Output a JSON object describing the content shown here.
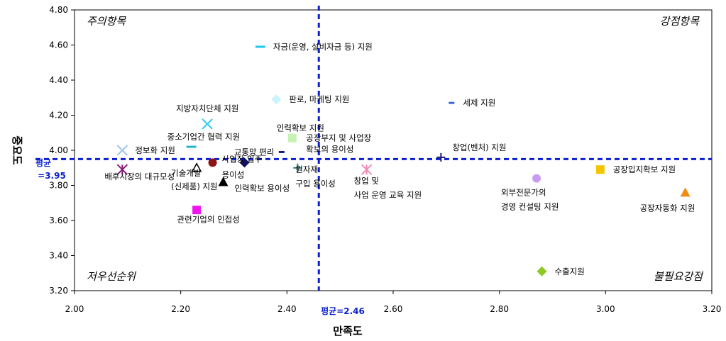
{
  "chart_data": {
    "type": "scatter",
    "xlabel": "만족도",
    "ylabel": "중요도",
    "xlim": [
      2.0,
      3.2
    ],
    "ylim": [
      3.2,
      4.8
    ],
    "x_ticks": [
      "2.00",
      "2.20",
      "2.40",
      "2.60",
      "2.80",
      "3.00",
      "3.20"
    ],
    "y_ticks": [
      "3.20",
      "3.40",
      "3.60",
      "3.80",
      "4.00",
      "4.20",
      "4.40",
      "4.60",
      "4.80"
    ],
    "grid": false,
    "avg_x": {
      "value": 2.46,
      "label": "평균=2.46"
    },
    "avg_y": {
      "value": 3.95,
      "label_line1": "평균",
      "label_line2": "=3.95"
    },
    "quadrants": {
      "top_left": "주의항목",
      "top_right": "강점항목",
      "bottom_left": "저우선순위",
      "bottom_right": "불필요강점"
    },
    "points": [
      {
        "label": "자금(운영, 설비자금 등) 지원",
        "x": 2.35,
        "y": 4.59,
        "marker": "dash",
        "color": "#1ec8f0"
      },
      {
        "label": "판로, 마케팅 지원",
        "x": 2.38,
        "y": 4.29,
        "marker": "diamond",
        "color": "#c8f4fa"
      },
      {
        "label": "세제 지원",
        "x": 2.71,
        "y": 4.27,
        "marker": "dash-small",
        "color": "#3a66e0"
      },
      {
        "label": "지방자치단체 지원",
        "x": 2.25,
        "y": 4.15,
        "marker": "x",
        "color": "#2ed0e6"
      },
      {
        "label": "인력확보 지원",
        "x": 2.41,
        "y": 4.07,
        "marker": "square",
        "color": "#c6f2b4"
      },
      {
        "label": "중소기업간 협력 지원",
        "x": 2.22,
        "y": 4.02,
        "marker": "dash",
        "color": "#26b4c8"
      },
      {
        "label": "정보화 지원",
        "x": 2.09,
        "y": 4.0,
        "marker": "x",
        "color": "#9ec4f0"
      },
      {
        "label": "교통망 편리",
        "x": 2.39,
        "y": 3.99,
        "marker": "dash-small",
        "color": "#1a1a8c"
      },
      {
        "label": "공장부지 및 사업장 확보의 용이성",
        "x": 2.42,
        "y": 3.95,
        "marker": "none",
        "color": "#000000"
      },
      {
        "label": "창업(벤처) 지원",
        "x": 2.69,
        "y": 3.96,
        "marker": "plus",
        "color": "#1a1a6e"
      },
      {
        "label": "배후시장의 대규모성",
        "x": 2.09,
        "y": 3.89,
        "marker": "asterisk",
        "color": "#8a1a7a"
      },
      {
        "label": "기술개발 (신제품) 지원",
        "x": 2.23,
        "y": 3.9,
        "marker": "triangle-open",
        "color": "#000000"
      },
      {
        "label": "사업장 입주 용이성",
        "x": 2.26,
        "y": 3.93,
        "marker": "circle",
        "color": "#8c1414"
      },
      {
        "label": "인력확보 용이성",
        "x": 2.32,
        "y": 3.93,
        "marker": "diamond",
        "color": "#101060"
      },
      {
        "label": "관련기업의 인접성",
        "x": 2.28,
        "y": 3.82,
        "marker": "triangle",
        "color": "#000000"
      },
      {
        "label": "원자재 구입 용이성",
        "x": 2.42,
        "y": 3.9,
        "marker": "plus",
        "color": "#2a7a7a"
      },
      {
        "label": "창업 및 사업 운영 교육 지원",
        "x": 2.55,
        "y": 3.89,
        "marker": "asterisk",
        "color": "#f08cb4"
      },
      {
        "label": "외부전문가의 경영 컨설팅 지원",
        "x": 2.87,
        "y": 3.84,
        "marker": "circle",
        "color": "#c89cf0"
      },
      {
        "label": "공장입지확보 지원",
        "x": 2.99,
        "y": 3.89,
        "marker": "square",
        "color": "#f4c400"
      },
      {
        "label": "공장자동화 지원",
        "x": 3.15,
        "y": 3.76,
        "marker": "triangle",
        "color": "#f08c14"
      },
      {
        "label": "수출지원",
        "x": 2.88,
        "y": 3.31,
        "marker": "diamond",
        "color": "#8cc81e"
      },
      {
        "label": "",
        "x": 2.23,
        "y": 3.66,
        "marker": "square",
        "color": "#f014f0"
      }
    ]
  },
  "colors": {
    "avg_line": "#0b1fd0"
  }
}
